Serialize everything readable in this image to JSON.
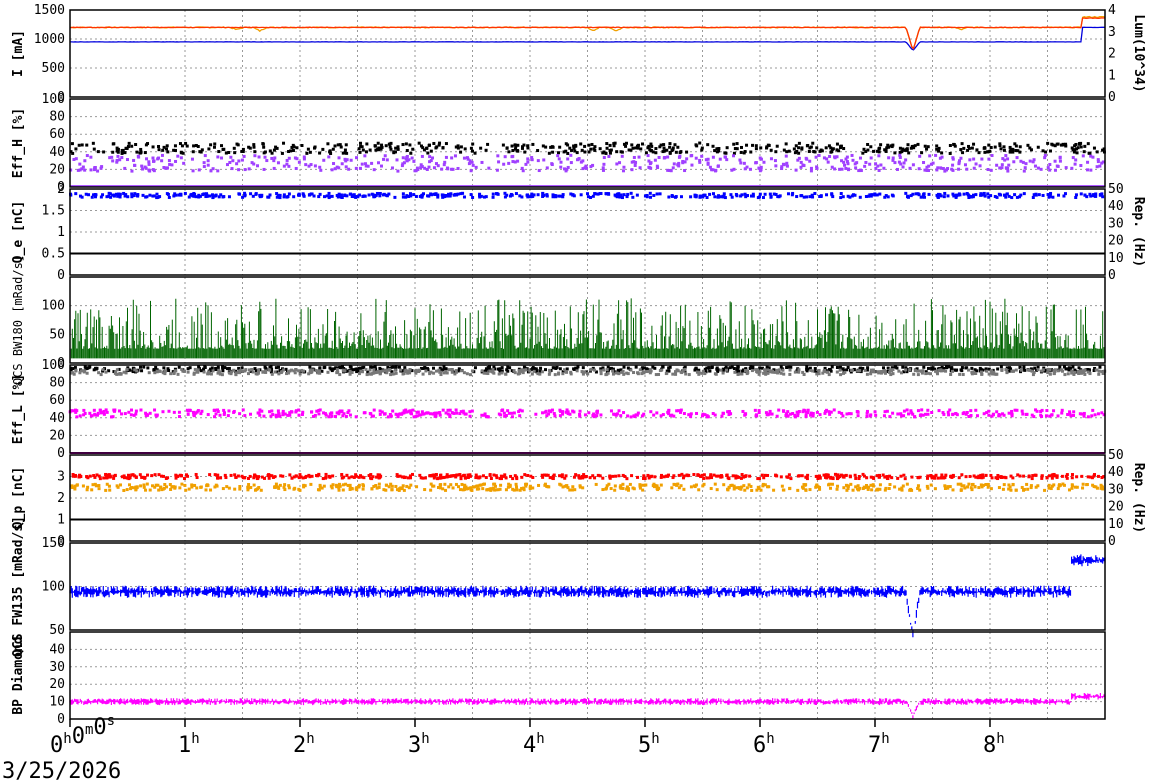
{
  "date": "3/25/2026",
  "x_axis": {
    "unit": "hours",
    "ticks": [
      {
        "v": 0,
        "main": "0",
        "sup": "h",
        "extra": [
          [
            "0",
            "m"
          ],
          [
            "0",
            "s"
          ]
        ]
      },
      {
        "v": 1,
        "main": "1",
        "sup": "h"
      },
      {
        "v": 2,
        "main": "2",
        "sup": "h"
      },
      {
        "v": 3,
        "main": "3",
        "sup": "h"
      },
      {
        "v": 4,
        "main": "4",
        "sup": "h"
      },
      {
        "v": 5,
        "main": "5",
        "sup": "h"
      },
      {
        "v": 6,
        "main": "6",
        "sup": "h"
      },
      {
        "v": 7,
        "main": "7",
        "sup": "h"
      },
      {
        "v": 8,
        "main": "8",
        "sup": "h"
      }
    ],
    "range_hours": [
      0,
      9.0
    ]
  },
  "chart_data": [
    {
      "type": "line",
      "ylabel": "I [mA]",
      "ylim": [
        0,
        1500
      ],
      "yticks": [
        0,
        500,
        1000,
        1500
      ],
      "ylabel_right": "Lum(10^34)",
      "ylim_right": [
        0,
        4
      ],
      "yticks_right": [
        0,
        1,
        2,
        3,
        4
      ],
      "series": [
        {
          "color": "#f0a000",
          "kind": "line",
          "base": 1200,
          "noise": 18,
          "dips": [
            [
              1.45,
              40
            ],
            [
              1.65,
              60
            ],
            [
              4.55,
              50
            ],
            [
              4.75,
              60
            ],
            [
              7.33,
              400
            ],
            [
              7.75,
              40
            ]
          ],
          "end": [
            8.8,
            1380
          ]
        },
        {
          "color": "#0000dd",
          "kind": "line",
          "base": 950,
          "noise": 4,
          "dips": [
            [
              7.33,
              150
            ]
          ],
          "end": [
            8.8,
            1200
          ]
        },
        {
          "color": "#ff3300",
          "kind": "line",
          "base": 1200,
          "noise": 8,
          "dips": [
            [
              7.33,
              400
            ]
          ],
          "end": [
            8.8,
            1360
          ]
        }
      ]
    },
    {
      "type": "scatter",
      "ylabel": "Eff_H [%]",
      "ylim": [
        0,
        100
      ],
      "yticks": [
        0,
        20,
        40,
        60,
        80,
        100
      ],
      "series": [
        {
          "color": "#000000",
          "kind": "dots",
          "base": 44,
          "noise": 6
        },
        {
          "color": "#a040ff",
          "kind": "dots",
          "base": 27,
          "noise": 9
        },
        {
          "color": "#a040ff",
          "kind": "flat",
          "base": 1
        }
      ]
    },
    {
      "type": "scatter",
      "ylabel": "Q_e [nC]",
      "ylim": [
        0,
        2
      ],
      "yticks": [
        0,
        0.5,
        1,
        1.5,
        2
      ],
      "ylabel_right": "Rep. (Hz)",
      "ylim_right": [
        0,
        50
      ],
      "yticks_right": [
        0,
        10,
        20,
        30,
        40,
        50
      ],
      "series": [
        {
          "color": "#0000ff",
          "kind": "dots",
          "base": 1.85,
          "noise": 0.05
        },
        {
          "color": "#000000",
          "kind": "flat",
          "base": 0.5
        }
      ]
    },
    {
      "type": "bar",
      "ylabel": "QCS BW180 [mRad/s]",
      "ylim": [
        0,
        150
      ],
      "yticks": [
        0,
        50,
        100
      ],
      "series": [
        {
          "color": "#006400",
          "kind": "spikes",
          "base": 25,
          "noise": 40
        }
      ]
    },
    {
      "type": "scatter",
      "ylabel": "Eff_L [%]",
      "ylim": [
        0,
        100
      ],
      "yticks": [
        0,
        20,
        40,
        60,
        80,
        100
      ],
      "series": [
        {
          "color": "#000000",
          "kind": "dots",
          "base": 95,
          "noise": 3
        },
        {
          "color": "#777777",
          "kind": "dots",
          "base": 92,
          "noise": 3
        },
        {
          "color": "#ff00ff",
          "kind": "dots",
          "base": 45,
          "noise": 4
        },
        {
          "color": "#ff00ff",
          "kind": "flat",
          "base": 0
        }
      ]
    },
    {
      "type": "scatter",
      "ylabel": "Q_p [nC]",
      "ylim": [
        0,
        4
      ],
      "yticks": [
        0,
        1,
        2,
        3
      ],
      "ylabel_right": "Rep. (Hz)",
      "ylim_right": [
        0,
        50
      ],
      "yticks_right": [
        0,
        10,
        20,
        30,
        40,
        50
      ],
      "series": [
        {
          "color": "#ff0000",
          "kind": "dots",
          "base": 3.0,
          "noise": 0.1
        },
        {
          "color": "#f0a000",
          "kind": "dots",
          "base": 2.5,
          "noise": 0.15
        },
        {
          "color": "#000000",
          "kind": "flat",
          "base": 1.0
        }
      ]
    },
    {
      "type": "bar",
      "ylabel": "QCS FW135 [mRad/s]",
      "ylim": [
        50,
        150
      ],
      "yticks": [
        50,
        100,
        150
      ],
      "series": [
        {
          "color": "#0000ff",
          "kind": "band",
          "base": 94,
          "noise": 7,
          "dips": [
            [
              7.33,
              55
            ]
          ],
          "end": [
            8.7,
            130
          ]
        }
      ]
    },
    {
      "type": "bar",
      "ylabel": "BP Diamond",
      "ylim": [
        0,
        50
      ],
      "yticks": [
        0,
        10,
        20,
        30,
        40
      ],
      "series": [
        {
          "color": "#ff00ff",
          "kind": "band",
          "base": 10,
          "noise": 2,
          "dips": [
            [
              7.33,
              8
            ]
          ],
          "end": [
            8.7,
            13
          ]
        }
      ]
    }
  ]
}
